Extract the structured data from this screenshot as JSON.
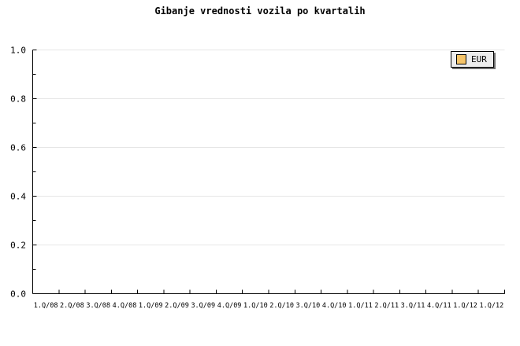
{
  "chart_data": {
    "type": "line",
    "title": "Gibanje vrednosti vozila po kvartalih",
    "categories": [
      "1.Q/08",
      "2.Q/08",
      "3.Q/08",
      "4.Q/08",
      "1.Q/09",
      "2.Q/09",
      "3.Q/09",
      "4.Q/09",
      "1.Q/10",
      "2.Q/10",
      "3.Q/10",
      "4.Q/10",
      "1.Q/11",
      "2.Q/11",
      "3.Q/11",
      "4.Q/11",
      "1.Q/12",
      "1.Q/12"
    ],
    "series": [
      {
        "name": "EUR",
        "color": "#f5c469",
        "values": []
      }
    ],
    "xlabel": "",
    "ylabel": "",
    "ylim": [
      0.0,
      1.0
    ],
    "y_tick_step": 0.1,
    "y_tick_labels": [
      "0.0",
      "0.2",
      "0.4",
      "0.6",
      "0.8",
      "1.0"
    ],
    "grid": "horizontal",
    "gridline_values": [
      0.2,
      0.4,
      0.6,
      0.8,
      1.0
    ],
    "legend_position": "top-right",
    "legend_items": [
      {
        "label": "EUR",
        "swatch_color": "#f5c469"
      }
    ]
  },
  "colors": {
    "background": "#ffffff",
    "axis": "#000000",
    "text": "#000000",
    "grid": "#e6e6e6",
    "legend_fill": "#ececec",
    "legend_border": "#000000",
    "legend_shadow": "#707070",
    "series_eur": "#f5c469"
  }
}
